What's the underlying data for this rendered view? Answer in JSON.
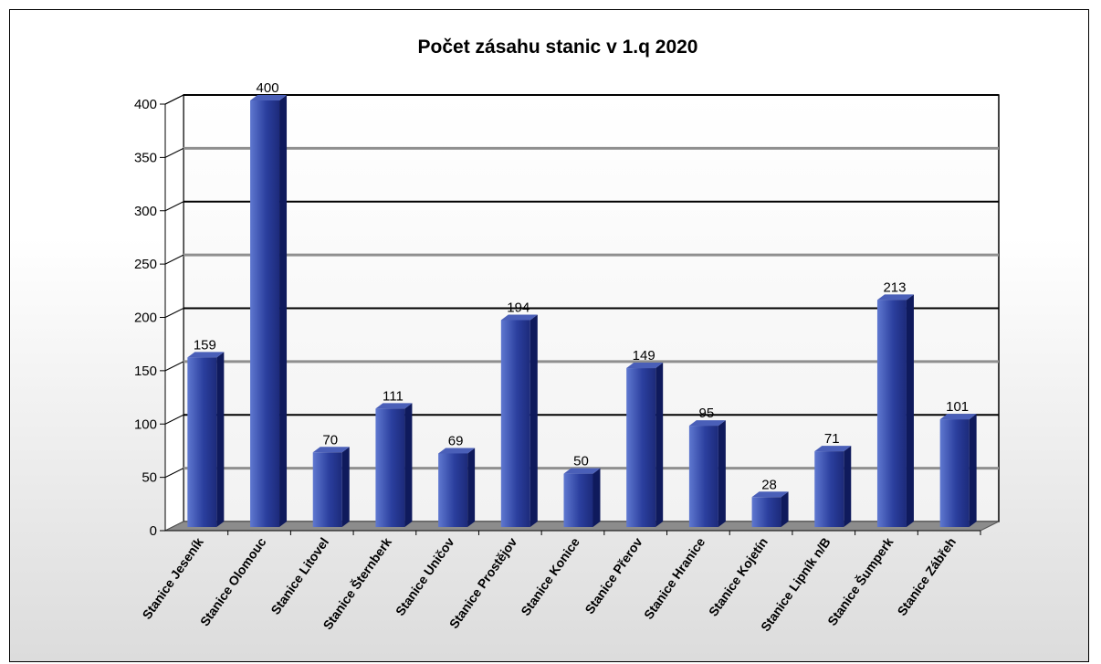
{
  "chart_data": {
    "type": "bar",
    "title": "Počet zásahu stanic v 1.q 2020",
    "xlabel": "",
    "ylabel": "",
    "categories": [
      "Stanice Jeseník",
      "Stanice Olomouc",
      "Stanice Litovel",
      "Stanice Šternberk",
      "Stanice Uničov",
      "Stanice Prostějov",
      "Stanice Konice",
      "Stanice Přerov",
      "Stanice Hranice",
      "Stanice Kojetín",
      "Stanice Lipník n/B",
      "Stanice Šumperk",
      "Stanice Zábřeh"
    ],
    "values": [
      159,
      400,
      70,
      111,
      69,
      194,
      50,
      149,
      95,
      28,
      71,
      213,
      101
    ],
    "ylim": [
      0,
      400
    ],
    "yticks": [
      0,
      50,
      100,
      150,
      200,
      250,
      300,
      350,
      400
    ],
    "grid": true,
    "legend": "none",
    "style": "3d",
    "colors": {
      "bar": "#2b3f9e",
      "bar_light": "#5f78d0",
      "bar_dark": "#0f1a5c",
      "floor": "#8c8c8c",
      "grid": "#000000"
    }
  }
}
